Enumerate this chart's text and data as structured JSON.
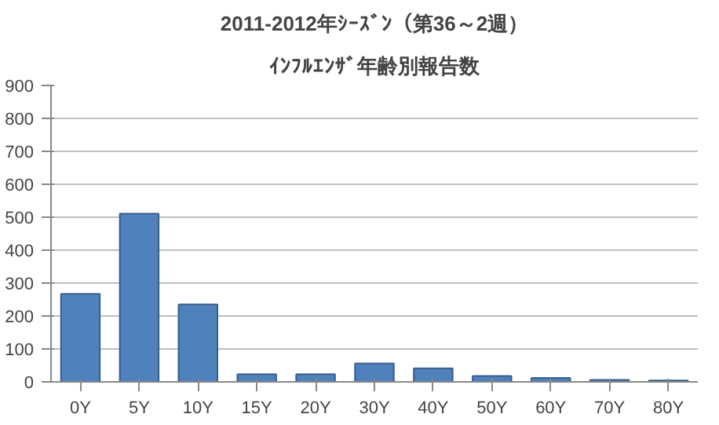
{
  "chart_data": {
    "type": "bar",
    "title": "2011-2012年ｼｰｽﾞﾝ（第36～2週）",
    "subtitle": "ｲﾝﾌﾙｴﾝｻﾞ年齢別報告数",
    "categories": [
      "0Y",
      "5Y",
      "10Y",
      "15Y",
      "20Y",
      "30Y",
      "40Y",
      "50Y",
      "60Y",
      "70Y",
      "80Y"
    ],
    "values": [
      267,
      511,
      235,
      23,
      23,
      56,
      41,
      18,
      12,
      6,
      4
    ],
    "color": "#4f81bd",
    "ylim": [
      0,
      900
    ],
    "yticks": [
      0,
      100,
      200,
      300,
      400,
      500,
      600,
      700,
      800,
      900
    ],
    "grid": "y"
  }
}
